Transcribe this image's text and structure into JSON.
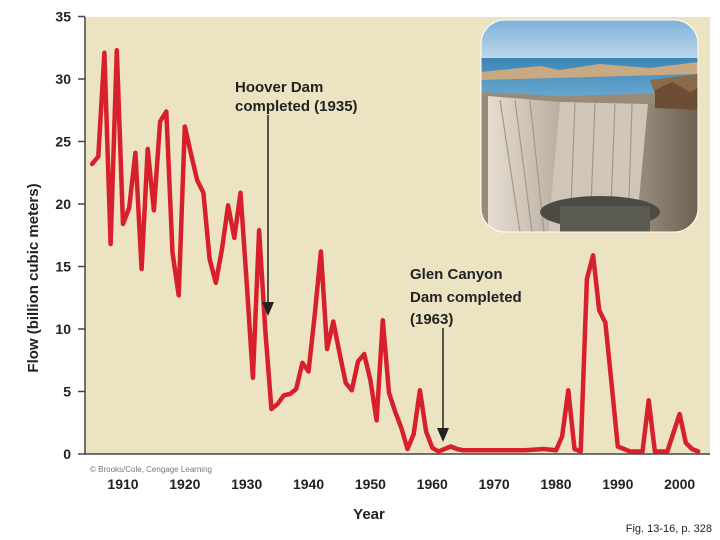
{
  "colors": {
    "plot_bg": "#ece3c2",
    "line": "#d8202c",
    "arrow": "#222222"
  },
  "chart_data": {
    "type": "line",
    "xlabel": "Year",
    "ylabel": "Flow (billion cubic meters)",
    "xlim": [
      1905,
      2005
    ],
    "ylim": [
      0,
      35
    ],
    "xticks": [
      "1910",
      "1920",
      "1930",
      "1940",
      "1950",
      "1960",
      "1970",
      "1980",
      "1990",
      "2000"
    ],
    "yticks": [
      "0",
      "5",
      "10",
      "15",
      "20",
      "25",
      "30",
      "35"
    ],
    "grid": false,
    "series": [
      {
        "x": [
          1905,
          1906,
          1907,
          1908,
          1909,
          1910,
          1911,
          1912,
          1913,
          1914,
          1915,
          1916,
          1917,
          1918,
          1919,
          1920,
          1921,
          1922,
          1923,
          1924,
          1925,
          1926,
          1927,
          1928,
          1929,
          1930,
          1931,
          1932,
          1933,
          1934,
          1935,
          1936,
          1937,
          1938,
          1939,
          1940,
          1941,
          1942,
          1943,
          1944,
          1945,
          1946,
          1947,
          1948,
          1949,
          1950,
          1951,
          1952,
          1953,
          1954,
          1955,
          1956,
          1957,
          1958,
          1959,
          1960,
          1961,
          1962,
          1963,
          1964,
          1965,
          1970,
          1975,
          1978,
          1980,
          1981,
          1982,
          1983,
          1984,
          1985,
          1986,
          1987,
          1988,
          1989,
          1990,
          1992,
          1994,
          1995,
          1996,
          1998,
          2000,
          2001,
          2002,
          2003
        ],
        "y": [
          23.2,
          23.8,
          32.1,
          16.8,
          32.3,
          18.4,
          19.7,
          24.1,
          14.8,
          24.4,
          19.5,
          26.6,
          27.4,
          16.1,
          12.7,
          26.2,
          24.0,
          21.9,
          20.9,
          15.6,
          13.7,
          16.4,
          19.9,
          17.3,
          20.9,
          13.7,
          6.1,
          17.9,
          9.9,
          3.6,
          4.0,
          4.7,
          4.8,
          5.2,
          7.3,
          6.6,
          11.1,
          16.2,
          8.4,
          10.6,
          8.1,
          5.7,
          5.1,
          7.4,
          8.0,
          5.9,
          2.7,
          10.7,
          4.9,
          3.4,
          2.1,
          0.4,
          1.6,
          5.1,
          1.8,
          0.5,
          0.2,
          0.4,
          0.6,
          0.4,
          0.3,
          0.3,
          0.3,
          0.4,
          0.3,
          1.4,
          5.1,
          0.4,
          0.2,
          14.0,
          15.9,
          11.5,
          10.5,
          5.6,
          0.6,
          0.2,
          0.2,
          4.3,
          0.2,
          0.2,
          3.2,
          0.9,
          0.4,
          0.2
        ]
      }
    ],
    "annotations": [
      {
        "lines": [
          "Hoover Dam",
          "completed (1935)"
        ],
        "x": 1935,
        "y": 11.5
      },
      {
        "lines": [
          "Glen Canyon",
          "Dam completed",
          "(1963)"
        ],
        "x": 1963,
        "y": 0.4
      }
    ]
  },
  "photo": {
    "name": "glen-canyon-dam-photo"
  },
  "credit": "© Brooks/Cole, Cengage Learning",
  "fig_ref": "Fig. 13-16, p. 328"
}
